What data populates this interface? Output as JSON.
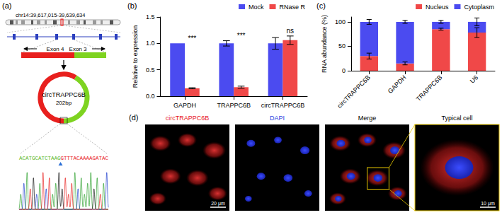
{
  "panels": [
    "(a)",
    "(b)",
    "(c)",
    "(d)"
  ],
  "diagram": {
    "locus": "chr14:39,617,015-39,639,634",
    "exons": [
      "Exon 4",
      "Exon 3"
    ],
    "circ_name": "circTRAPPC6B",
    "length": "202bp",
    "sequence_left": "ACATGCATCTAAG",
    "sequence_right": "GTTTACAAAAGATAC"
  },
  "chart_data": [
    {
      "type": "bar",
      "categories": [
        "GAPDH",
        "TRAPPC6B",
        "circTRAPPC6B"
      ],
      "y_label": "Relative to expression",
      "ylim": [
        0,
        1.5
      ],
      "yticks": [
        {
          "value": 0,
          "label": "0.0"
        },
        {
          "value": 0.5,
          "label": "0.5"
        },
        {
          "value": 1,
          "label": "1.0"
        },
        {
          "value": 1.5,
          "label": "1.5"
        }
      ],
      "grid": false,
      "legend": "top-right",
      "series": [
        {
          "name": "Mock",
          "color": "#4b4bf0",
          "values": [
            1,
            1,
            1
          ],
          "errors": [
            0,
            0.05,
            0.11
          ]
        },
        {
          "name": "RNase R",
          "color": "#f04848",
          "values": [
            0.15,
            0.17,
            1.06
          ],
          "errors": [
            0.01,
            0.02,
            0.08
          ]
        }
      ],
      "annotations": [
        {
          "category": "GAPDH",
          "text": "***"
        },
        {
          "category": "TRAPPC6B",
          "text": "***"
        },
        {
          "category": "circTRAPPC6B",
          "text": "ns"
        }
      ]
    },
    {
      "type": "bar",
      "stacked": true,
      "categories": [
        "circTRAPPC6B",
        "GAPDH",
        "TRAPPC6B",
        "U6"
      ],
      "y_label": "RNA abundance (%)",
      "ylim": [
        0,
        110
      ],
      "yticks": [
        0,
        50,
        100
      ],
      "grid": false,
      "legend": "top-right",
      "series": [
        {
          "name": "Nucleus",
          "color": "#f04848",
          "values": [
            30,
            15,
            85,
            78
          ],
          "errors": [
            6,
            3,
            2,
            10
          ]
        },
        {
          "name": "Cytoplasm",
          "color": "#4b4bf0",
          "values": [
            70,
            85,
            15,
            22
          ],
          "errors": [
            5,
            3,
            3,
            8
          ]
        }
      ]
    }
  ],
  "images": {
    "channels": [
      "circTRAPPC6B",
      "DAPI",
      "Merge",
      "Typical cell"
    ],
    "scale_bars": [
      "20 μm",
      "10 μm"
    ]
  }
}
